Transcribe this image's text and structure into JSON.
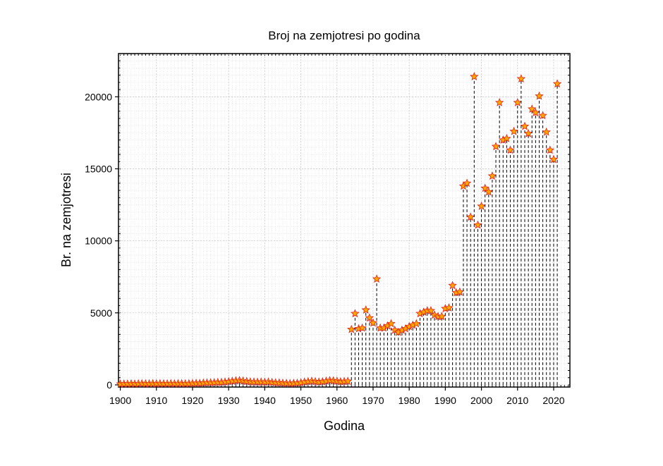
{
  "chart_data": {
    "type": "stem",
    "title": "Broj na zemjotresi po godina",
    "xlabel": "Godina",
    "ylabel": "Br. na zemjotresi",
    "x": [
      1900,
      1901,
      1902,
      1903,
      1904,
      1905,
      1906,
      1907,
      1908,
      1909,
      1910,
      1911,
      1912,
      1913,
      1914,
      1915,
      1916,
      1917,
      1918,
      1919,
      1920,
      1921,
      1922,
      1923,
      1924,
      1925,
      1926,
      1927,
      1928,
      1929,
      1930,
      1931,
      1932,
      1933,
      1934,
      1935,
      1936,
      1937,
      1938,
      1939,
      1940,
      1941,
      1942,
      1943,
      1944,
      1945,
      1946,
      1947,
      1948,
      1949,
      1950,
      1951,
      1952,
      1953,
      1954,
      1955,
      1956,
      1957,
      1958,
      1959,
      1960,
      1961,
      1962,
      1963,
      1964,
      1965,
      1966,
      1967,
      1968,
      1969,
      1970,
      1971,
      1972,
      1973,
      1974,
      1975,
      1976,
      1977,
      1978,
      1979,
      1980,
      1981,
      1982,
      1983,
      1984,
      1985,
      1986,
      1987,
      1988,
      1989,
      1990,
      1991,
      1992,
      1993,
      1994,
      1995,
      1996,
      1997,
      1998,
      1999,
      2000,
      2001,
      2002,
      2003,
      2004,
      2005,
      2006,
      2007,
      2008,
      2009,
      2010,
      2011,
      2012,
      2013,
      2014,
      2015,
      2016,
      2017,
      2018,
      2019,
      2020,
      2021
    ],
    "values": [
      60,
      70,
      70,
      80,
      70,
      80,
      90,
      80,
      80,
      90,
      80,
      90,
      80,
      80,
      90,
      80,
      90,
      90,
      80,
      90,
      100,
      110,
      110,
      130,
      140,
      150,
      160,
      170,
      180,
      200,
      230,
      260,
      290,
      300,
      270,
      240,
      210,
      200,
      190,
      200,
      190,
      200,
      170,
      150,
      140,
      120,
      110,
      100,
      110,
      120,
      150,
      200,
      230,
      260,
      230,
      200,
      220,
      260,
      300,
      280,
      260,
      220,
      240,
      250,
      3850,
      4950,
      3900,
      3950,
      5200,
      4650,
      4300,
      7350,
      3950,
      3950,
      4100,
      4250,
      3800,
      3650,
      3800,
      3900,
      4050,
      4150,
      4250,
      4950,
      5050,
      5150,
      5150,
      4850,
      4750,
      4750,
      5300,
      5350,
      6900,
      6400,
      6450,
      13800,
      14000,
      11650,
      21400,
      11100,
      12400,
      13650,
      13400,
      14500,
      16550,
      19600,
      17000,
      17100,
      16300,
      17600,
      19600,
      21250,
      17950,
      17450,
      19150,
      18900,
      20050,
      18700,
      17550,
      16300,
      15650,
      20900
    ],
    "marker_color": "#ffa500",
    "marker_edge": "#e0201a",
    "stem_color": "#000000",
    "xlim": [
      1899.5,
      2024.5
    ],
    "xticks": [
      1900,
      1910,
      1920,
      1930,
      1940,
      1950,
      1960,
      1970,
      1980,
      1990,
      2000,
      2010,
      2020
    ],
    "ylim": [
      -150,
      23000
    ],
    "yticks": [
      0,
      5000,
      10000,
      15000,
      20000
    ],
    "grid": true
  }
}
